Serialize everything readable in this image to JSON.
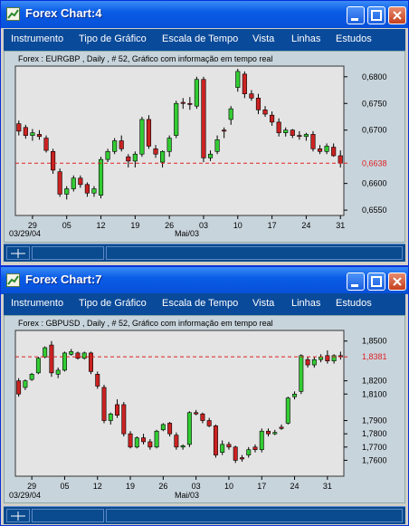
{
  "windows": [
    {
      "title": "Forex Chart:4",
      "subtitle": "Forex : EURGBP , Daily , # 52, Gráfico com informação em tempo real",
      "current_price": "0,6638",
      "y_labels": [
        "0,6800",
        "0,6750",
        "0,6700",
        "0,6600",
        "0,6550"
      ],
      "x_labels": [
        "29",
        "05",
        "12",
        "19",
        "26",
        "03",
        "10",
        "17",
        "24",
        "31"
      ],
      "date_label": "03/29/04",
      "month_label": "Mai/03"
    },
    {
      "title": "Forex Chart:7",
      "subtitle": "Forex : GBPUSD , Daily , # 52, Gráfico com informação em tempo real",
      "current_price": "1,8381",
      "y_labels": [
        "1,8500",
        "1,8200",
        "1,8100",
        "1,7900",
        "1,7800",
        "1,7700",
        "1,7600"
      ],
      "x_labels": [
        "29",
        "05",
        "12",
        "19",
        "26",
        "03",
        "10",
        "17",
        "24",
        "31"
      ],
      "date_label": "03/29/04",
      "month_label": "Mai/03"
    }
  ],
  "menu": [
    "Instrumento",
    "Tipo de Gráfico",
    "Escala de Tempo",
    "Vista",
    "Linhas",
    "Estudos"
  ],
  "colors": {
    "up_candle": "#33cc33",
    "down_candle": "#cc2222",
    "price_line": "#dd2222",
    "plot_bg": "#e4e4e4",
    "titlebar": "#0a5ce6",
    "menubar": "#0a4a9a"
  },
  "chart_data": [
    {
      "type": "candlestick",
      "symbol": "EURGBP",
      "ylim": [
        0.654,
        0.682
      ],
      "ohlc": [
        [
          0.6712,
          0.6718,
          0.669,
          0.6698
        ],
        [
          0.6705,
          0.671,
          0.6684,
          0.669
        ],
        [
          0.669,
          0.6702,
          0.668,
          0.6695
        ],
        [
          0.6692,
          0.67,
          0.6682,
          0.6688
        ],
        [
          0.6685,
          0.669,
          0.6658,
          0.6662
        ],
        [
          0.666,
          0.6665,
          0.6618,
          0.6625
        ],
        [
          0.6622,
          0.6628,
          0.6575,
          0.658
        ],
        [
          0.658,
          0.6595,
          0.657,
          0.659
        ],
        [
          0.659,
          0.6615,
          0.6585,
          0.661
        ],
        [
          0.661,
          0.6615,
          0.6592,
          0.6598
        ],
        [
          0.6598,
          0.6602,
          0.6575,
          0.6582
        ],
        [
          0.6582,
          0.6595,
          0.6575,
          0.659
        ],
        [
          0.6578,
          0.665,
          0.6572,
          0.6645
        ],
        [
          0.6645,
          0.6665,
          0.664,
          0.666
        ],
        [
          0.666,
          0.6685,
          0.6655,
          0.668
        ],
        [
          0.668,
          0.669,
          0.666,
          0.6665
        ],
        [
          0.665,
          0.6655,
          0.663,
          0.6642
        ],
        [
          0.6642,
          0.666,
          0.663,
          0.6655
        ],
        [
          0.6655,
          0.6725,
          0.665,
          0.672
        ],
        [
          0.672,
          0.6728,
          0.6665,
          0.667
        ],
        [
          0.6665,
          0.6672,
          0.6648,
          0.6655
        ],
        [
          0.664,
          0.6662,
          0.663,
          0.666
        ],
        [
          0.666,
          0.669,
          0.665,
          0.6685
        ],
        [
          0.669,
          0.6755,
          0.6685,
          0.675
        ],
        [
          0.6752,
          0.676,
          0.674,
          0.675
        ],
        [
          0.675,
          0.6762,
          0.6738,
          0.6748
        ],
        [
          0.6745,
          0.68,
          0.674,
          0.6795
        ],
        [
          0.6795,
          0.68,
          0.664,
          0.6648
        ],
        [
          0.6648,
          0.6662,
          0.6642,
          0.6655
        ],
        [
          0.666,
          0.669,
          0.6655,
          0.6682
        ],
        [
          0.67,
          0.6705,
          0.6685,
          0.6698
        ],
        [
          0.672,
          0.6745,
          0.671,
          0.674
        ],
        [
          0.678,
          0.6815,
          0.6772,
          0.681
        ],
        [
          0.6805,
          0.681,
          0.676,
          0.6768
        ],
        [
          0.6768,
          0.6775,
          0.6755,
          0.676
        ],
        [
          0.676,
          0.6768,
          0.673,
          0.6738
        ],
        [
          0.6738,
          0.6745,
          0.6725,
          0.673
        ],
        [
          0.6728,
          0.6735,
          0.6708,
          0.6715
        ],
        [
          0.6715,
          0.6722,
          0.6688,
          0.6695
        ],
        [
          0.6695,
          0.6705,
          0.6688,
          0.67
        ],
        [
          0.67,
          0.6702,
          0.6685,
          0.669
        ],
        [
          0.669,
          0.6698,
          0.6682,
          0.6688
        ],
        [
          0.6688,
          0.6695,
          0.668,
          0.6692
        ],
        [
          0.6692,
          0.6698,
          0.666,
          0.6665
        ],
        [
          0.6665,
          0.6672,
          0.6655,
          0.666
        ],
        [
          0.666,
          0.6675,
          0.6655,
          0.667
        ],
        [
          0.6668,
          0.6675,
          0.665,
          0.6652
        ],
        [
          0.6652,
          0.6662,
          0.663,
          0.6638
        ]
      ]
    },
    {
      "type": "candlestick",
      "symbol": "GBPUSD",
      "ylim": [
        1.748,
        1.858
      ],
      "ohlc": [
        [
          1.82,
          1.822,
          1.808,
          1.81
        ],
        [
          1.815,
          1.821,
          1.813,
          1.82
        ],
        [
          1.821,
          1.826,
          1.82,
          1.825
        ],
        [
          1.826,
          1.838,
          1.825,
          1.837
        ],
        [
          1.838,
          1.846,
          1.837,
          1.845
        ],
        [
          1.847,
          1.85,
          1.823,
          1.826
        ],
        [
          1.825,
          1.83,
          1.822,
          1.828
        ],
        [
          1.828,
          1.842,
          1.827,
          1.841
        ],
        [
          1.84,
          1.844,
          1.839,
          1.842
        ],
        [
          1.841,
          1.842,
          1.836,
          1.837
        ],
        [
          1.837,
          1.842,
          1.836,
          1.841
        ],
        [
          1.841,
          1.842,
          1.825,
          1.827
        ],
        [
          1.825,
          1.827,
          1.814,
          1.816
        ],
        [
          1.815,
          1.817,
          1.788,
          1.79
        ],
        [
          1.79,
          1.796,
          1.787,
          1.795
        ],
        [
          1.802,
          1.806,
          1.792,
          1.794
        ],
        [
          1.802,
          1.804,
          1.778,
          1.78
        ],
        [
          1.78,
          1.782,
          1.769,
          1.77
        ],
        [
          1.77,
          1.778,
          1.769,
          1.777
        ],
        [
          1.777,
          1.78,
          1.772,
          1.774
        ],
        [
          1.774,
          1.776,
          1.768,
          1.77
        ],
        [
          1.77,
          1.783,
          1.769,
          1.782
        ],
        [
          1.783,
          1.788,
          1.782,
          1.787
        ],
        [
          1.788,
          1.789,
          1.778,
          1.78
        ],
        [
          1.779,
          1.781,
          1.768,
          1.77
        ],
        [
          1.77,
          1.772,
          1.768,
          1.771
        ],
        [
          1.772,
          1.797,
          1.77,
          1.796
        ],
        [
          1.796,
          1.798,
          1.794,
          1.795
        ],
        [
          1.795,
          1.796,
          1.788,
          1.79
        ],
        [
          1.79,
          1.792,
          1.785,
          1.786
        ],
        [
          1.786,
          1.787,
          1.762,
          1.764
        ],
        [
          1.766,
          1.775,
          1.764,
          1.772
        ],
        [
          1.772,
          1.774,
          1.768,
          1.77
        ],
        [
          1.77,
          1.771,
          1.758,
          1.76
        ],
        [
          1.762,
          1.764,
          1.759,
          1.761
        ],
        [
          1.764,
          1.77,
          1.762,
          1.768
        ],
        [
          1.77,
          1.772,
          1.766,
          1.768
        ],
        [
          1.768,
          1.784,
          1.766,
          1.782
        ],
        [
          1.782,
          1.784,
          1.778,
          1.78
        ],
        [
          1.78,
          1.783,
          1.779,
          1.781
        ],
        [
          1.785,
          1.787,
          1.783,
          1.784
        ],
        [
          1.788,
          1.808,
          1.787,
          1.807
        ],
        [
          1.808,
          1.812,
          1.806,
          1.81
        ],
        [
          1.812,
          1.84,
          1.81,
          1.839
        ],
        [
          1.836,
          1.838,
          1.83,
          1.832
        ],
        [
          1.832,
          1.838,
          1.83,
          1.836
        ],
        [
          1.836,
          1.84,
          1.834,
          1.838
        ],
        [
          1.839,
          1.843,
          1.833,
          1.835
        ],
        [
          1.835,
          1.84,
          1.833,
          1.839
        ],
        [
          1.839,
          1.842,
          1.836,
          1.8381
        ]
      ]
    }
  ]
}
